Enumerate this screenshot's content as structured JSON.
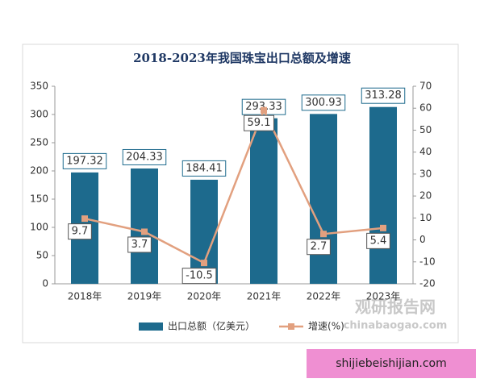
{
  "chart_data": {
    "type": "combo",
    "title": "2018-2023年我国珠宝出口总额及增速",
    "categories": [
      "2018年",
      "2019年",
      "2020年",
      "2021年",
      "2022年",
      "2023年"
    ],
    "series": [
      {
        "name": "出口总额（亿美元）",
        "type": "bar",
        "color": "#1d6a8d",
        "values": [
          197.32,
          204.33,
          184.41,
          293.33,
          300.93,
          313.28
        ]
      },
      {
        "name": "增速(%)",
        "type": "line",
        "axis": "y2",
        "color": "#e2a07f",
        "values": [
          9.7,
          3.7,
          -10.5,
          59.1,
          2.7,
          5.4
        ]
      }
    ],
    "ylim": [
      0,
      350
    ],
    "yticks": [
      0,
      50,
      100,
      150,
      200,
      250,
      300,
      350
    ],
    "y2lim": [
      -20,
      70
    ],
    "y2ticks": [
      -20,
      -10,
      0,
      10,
      20,
      30,
      40,
      50,
      60,
      70
    ],
    "watermark": [
      "观研报告网",
      "chinabaogao.com"
    ],
    "footer": "shijiebeishijian.com"
  }
}
